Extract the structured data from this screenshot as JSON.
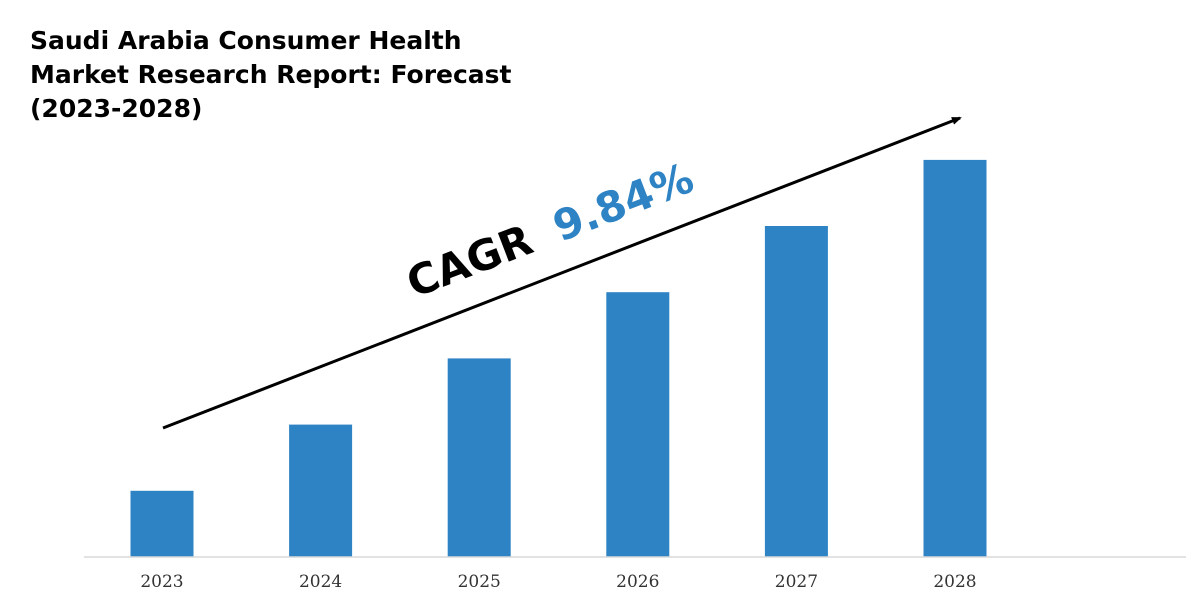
{
  "chart_data": {
    "type": "bar",
    "title": "Saudi Arabia Consumer Health\nMarket Research Report: Forecast\n(2023-2028)",
    "categories": [
      "2023",
      "2024",
      "2025",
      "2026",
      "2027",
      "2028"
    ],
    "values": [
      1.0,
      2.0,
      3.0,
      4.0,
      5.0,
      6.0
    ],
    "ylim": [
      0,
      6.3
    ],
    "xlabel": "",
    "ylabel": "",
    "grid": false,
    "annotation": {
      "label": "CAGR",
      "value": "9.84%"
    },
    "colors": {
      "bar": "#2e83c4",
      "cagr_label": "#000000",
      "cagr_value": "#2e83c4",
      "arrow": "#000000",
      "axis": "#d9d9d9"
    }
  }
}
